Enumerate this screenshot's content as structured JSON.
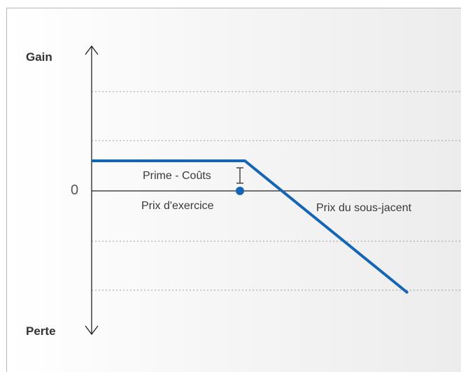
{
  "diagram": {
    "y_axis": {
      "top_label": "Gain",
      "bottom_label": "Perte",
      "zero_label": "0"
    },
    "labels": {
      "premium_costs": "Prime - Coûts",
      "strike_price": "Prix d'exercice",
      "underlying_price": "Prix du sous-jacent"
    },
    "colors": {
      "payoff_line": "#1565b5",
      "axis": "#222222",
      "gridline": "#9a9a9a",
      "strike_marker": "#1565b5"
    }
  }
}
